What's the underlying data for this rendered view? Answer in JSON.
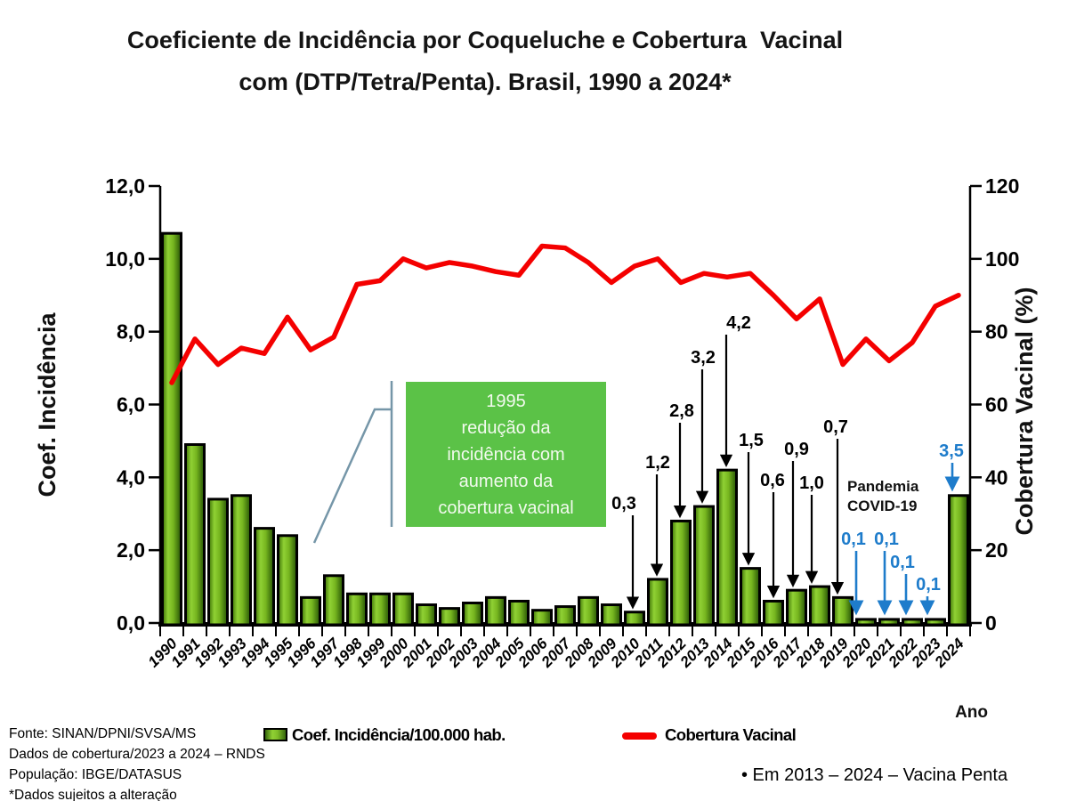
{
  "chart_data": {
    "type": "combo-bar-line",
    "title_line1": "Coeficiente de Incidência por Coqueluche e Cobertura  Vacinal",
    "title_line2": "com (DTP/Tetra/Penta). Brasil, 1990 a 2024*",
    "years": [
      "1990",
      "1991",
      "1992",
      "1993",
      "1994",
      "1995",
      "1996",
      "1997",
      "1998",
      "1999",
      "2000",
      "2001",
      "2002",
      "2003",
      "2004",
      "2005",
      "2006",
      "2007",
      "2008",
      "2009",
      "2010",
      "2011",
      "2012",
      "2013",
      "2014",
      "2015",
      "2016",
      "2017",
      "2018",
      "2019",
      "2020",
      "2021",
      "2022",
      "2023",
      "2024"
    ],
    "series": [
      {
        "name": "Coef. Incidência/100.000 hab.",
        "type": "bar",
        "axis": "left",
        "values": [
          10.7,
          4.9,
          3.4,
          3.5,
          2.6,
          2.4,
          0.7,
          1.3,
          0.8,
          0.8,
          0.8,
          0.5,
          0.4,
          0.55,
          0.7,
          0.6,
          0.35,
          0.45,
          0.7,
          0.5,
          0.3,
          1.2,
          2.8,
          3.2,
          4.2,
          1.5,
          0.6,
          0.9,
          1.0,
          0.7,
          0.1,
          0.1,
          0.1,
          0.1,
          3.5
        ]
      },
      {
        "name": "Cobertura Vacinal",
        "type": "line",
        "axis": "right",
        "values": [
          66,
          78,
          71,
          75.5,
          74,
          84,
          75,
          78.5,
          93,
          94,
          100,
          97.5,
          99,
          98,
          96.5,
          95.5,
          103.5,
          103,
          99,
          93.5,
          98,
          100,
          93.5,
          96,
          95,
          96,
          90,
          83.5,
          89,
          71,
          78,
          72,
          77,
          87,
          90
        ]
      }
    ],
    "left_axis": {
      "title": "Coef. Incidência",
      "ticks": [
        "0,0",
        "2,0",
        "4,0",
        "6,0",
        "8,0",
        "10,0",
        "12,0"
      ],
      "range": [
        0,
        12
      ]
    },
    "right_axis": {
      "title": "Cobertura Vacinal (%)",
      "ticks": [
        "0",
        "20",
        "40",
        "60",
        "80",
        "100",
        "120"
      ],
      "range": [
        0,
        120
      ]
    },
    "x_axis": {
      "title": "Ano"
    },
    "annotations": [
      {
        "year": "2010",
        "label": "0,3",
        "color": "black"
      },
      {
        "year": "2011",
        "label": "1,2",
        "color": "black"
      },
      {
        "year": "2012",
        "label": "2,8",
        "color": "black"
      },
      {
        "year": "2013",
        "label": "3,2",
        "color": "black"
      },
      {
        "year": "2014",
        "label": "4,2",
        "color": "black"
      },
      {
        "year": "2015",
        "label": "1,5",
        "color": "black"
      },
      {
        "year": "2016",
        "label": "0,6",
        "color": "black"
      },
      {
        "year": "2017",
        "label": "0,9",
        "color": "black"
      },
      {
        "year": "2018",
        "label": "1,0",
        "color": "black"
      },
      {
        "year": "2019",
        "label": "0,7",
        "color": "black"
      },
      {
        "year": "2020",
        "label": "0,1",
        "color": "blue"
      },
      {
        "year": "2021",
        "label": "0,1",
        "color": "blue"
      },
      {
        "year": "2022",
        "label": "0,1",
        "color": "blue"
      },
      {
        "year": "2023",
        "label": "0,1",
        "color": "blue"
      },
      {
        "year": "2024",
        "label": "3,5",
        "color": "blue"
      }
    ],
    "callout_box": {
      "lines": [
        "1995",
        "redução da",
        "incidência com",
        "aumento da",
        "cobertura vacinal"
      ]
    },
    "pandemic_label": {
      "line1": "Pandemia",
      "line2": "COVID-19"
    },
    "grid": "off",
    "legend_position": "bottom"
  },
  "legend": {
    "bar_label": "Coef. Incidência/100.000 hab.",
    "line_label": "Cobertura Vacinal"
  },
  "footer": {
    "lines": [
      "Fonte: SINAN/DPNI/SVSA/MS",
      "Dados de cobertura/2023 a 2024 – RNDS",
      "População: IBGE/DATASUS",
      "*Dados sujeitos a alteração"
    ]
  },
  "note": "• Em 2013 – 2024 – Vacina Penta",
  "colors": {
    "bar_green": "#7FBE28",
    "bar_green_light": "#90D134",
    "bar_green_dark": "#35660B",
    "line_red": "#F40000",
    "blue_arrow": "#1E7CCB",
    "box_green": "#5BC247",
    "callout_line": "#7596A8",
    "text_black": "#111111"
  }
}
